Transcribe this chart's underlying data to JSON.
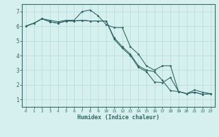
{
  "xlabel": "Humidex (Indice chaleur)",
  "background_color": "#d6f0f0",
  "grid_color": "#b8dede",
  "line_color": "#336666",
  "xlim": [
    -0.5,
    23.5
  ],
  "ylim": [
    0.5,
    7.5
  ],
  "xticks": [
    0,
    1,
    2,
    3,
    4,
    5,
    6,
    7,
    8,
    9,
    10,
    11,
    12,
    13,
    14,
    15,
    16,
    17,
    18,
    19,
    20,
    21,
    22,
    23
  ],
  "yticks": [
    1,
    2,
    3,
    4,
    5,
    6,
    7
  ],
  "line1_x": [
    0,
    1,
    2,
    3,
    4,
    5,
    6,
    7,
    8,
    9,
    10,
    11,
    12,
    13,
    14,
    15,
    16,
    17,
    18,
    19,
    20,
    21,
    22,
    23
  ],
  "line1_y": [
    6.0,
    6.2,
    6.5,
    6.4,
    6.3,
    6.4,
    6.4,
    7.0,
    7.1,
    6.7,
    6.1,
    5.9,
    5.9,
    4.6,
    4.1,
    3.3,
    3.0,
    3.3,
    3.3,
    1.55,
    1.4,
    1.65,
    1.5,
    1.4
  ],
  "line2_x": [
    0,
    1,
    2,
    3,
    4,
    5,
    6,
    7,
    8,
    9,
    10,
    11,
    12,
    13,
    14,
    15,
    16,
    17,
    18,
    19,
    20,
    21,
    22,
    23
  ],
  "line2_y": [
    6.0,
    6.2,
    6.5,
    6.3,
    6.2,
    6.35,
    6.35,
    6.4,
    6.35,
    6.35,
    6.35,
    5.2,
    4.6,
    4.1,
    3.3,
    3.0,
    2.9,
    2.3,
    1.6,
    1.55,
    1.4,
    1.5,
    1.35,
    1.4
  ],
  "line3_x": [
    0,
    1,
    2,
    3,
    4,
    5,
    6,
    7,
    8,
    9,
    10,
    11,
    12,
    13,
    14,
    15,
    16,
    17,
    18,
    19,
    20,
    21,
    22,
    23
  ],
  "line3_y": [
    6.0,
    6.2,
    6.5,
    6.3,
    6.2,
    6.35,
    6.35,
    6.4,
    6.35,
    6.35,
    6.35,
    5.1,
    4.5,
    4.0,
    3.2,
    2.9,
    2.2,
    2.15,
    2.5,
    1.55,
    1.4,
    1.5,
    1.35,
    1.4
  ]
}
